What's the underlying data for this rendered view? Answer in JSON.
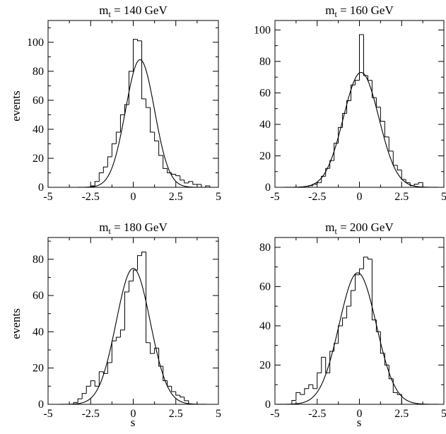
{
  "figure": {
    "ylabel_top": "events",
    "ylabel_bottom": "events",
    "xlabel_left": "s",
    "xlabel_right": "s"
  },
  "chart_data": [
    {
      "type": "histogram",
      "title_main": "m",
      "title_sub": "t",
      "title_rest": " = 140 GeV",
      "xlim": [
        -5,
        5
      ],
      "ylim": [
        0,
        115
      ],
      "xticks": [
        -5,
        -2.5,
        0,
        2.5,
        5
      ],
      "xtick_labels": [
        "-5",
        "-2.5",
        "0",
        "2.5",
        "5"
      ],
      "yticks": [
        0,
        20,
        40,
        60,
        80,
        100
      ],
      "ytick_labels": [
        "0",
        "20",
        "40",
        "60",
        "80",
        "100"
      ],
      "bin_width": 0.25,
      "bins_left": [
        -2.5,
        -2.25,
        -2.0,
        -1.75,
        -1.5,
        -1.25,
        -1.0,
        -0.75,
        -0.5,
        -0.25,
        0.0,
        0.25,
        0.5,
        0.75,
        1.0,
        1.25,
        1.5,
        1.75,
        2.0,
        2.25,
        2.5,
        2.75,
        3.0,
        3.25,
        3.5,
        3.75,
        4.0,
        4.25,
        4.5
      ],
      "counts": [
        1,
        4,
        10,
        14,
        21,
        30,
        38,
        50,
        57,
        80,
        102,
        101,
        61,
        55,
        38,
        32,
        22,
        13,
        10,
        9,
        8,
        5,
        3,
        4,
        2,
        2,
        0,
        1,
        0
      ],
      "fit": {
        "type": "gaussian",
        "amplitude": 88,
        "mean": 0.4,
        "sigma": 0.85
      }
    },
    {
      "type": "histogram",
      "title_main": "m",
      "title_sub": "t",
      "title_rest": " = 160 GeV",
      "xlim": [
        -5,
        5
      ],
      "ylim": [
        0,
        106
      ],
      "xticks": [
        -5,
        -2.5,
        0,
        2.5,
        5
      ],
      "xtick_labels": [
        "-5",
        "-2.5",
        "0",
        "2.5",
        "5"
      ],
      "yticks": [
        0,
        20,
        40,
        60,
        80,
        100
      ],
      "ytick_labels": [
        "0",
        "20",
        "40",
        "60",
        "80",
        "100"
      ],
      "bin_width": 0.25,
      "bins_left": [
        -3.0,
        -2.75,
        -2.5,
        -2.25,
        -2.0,
        -1.75,
        -1.5,
        -1.25,
        -1.0,
        -0.75,
        -0.5,
        -0.25,
        0.0,
        0.25,
        0.5,
        0.75,
        1.0,
        1.25,
        1.5,
        1.75,
        2.0,
        2.25,
        2.5,
        2.75,
        3.0,
        3.25,
        3.5
      ],
      "counts": [
        1,
        2,
        3,
        7,
        12,
        17,
        28,
        38,
        47,
        55,
        65,
        68,
        97,
        71,
        68,
        57,
        51,
        42,
        32,
        23,
        14,
        11,
        5,
        3,
        1,
        2,
        3
      ],
      "fit": {
        "type": "gaussian",
        "amplitude": 73,
        "mean": 0.1,
        "sigma": 1.05
      }
    },
    {
      "type": "histogram",
      "title_main": "m",
      "title_sub": "t",
      "title_rest": " = 180 GeV",
      "xlim": [
        -5,
        5
      ],
      "ylim": [
        0,
        92
      ],
      "xticks": [
        -5,
        -2.5,
        0,
        2.5,
        5
      ],
      "xtick_labels": [
        "-5",
        "-2.5",
        "0",
        "2.5",
        "5"
      ],
      "yticks": [
        0,
        20,
        40,
        60,
        80
      ],
      "ytick_labels": [
        "0",
        "20",
        "40",
        "60",
        "80"
      ],
      "bin_width": 0.25,
      "bins_left": [
        -3.5,
        -3.25,
        -3.0,
        -2.75,
        -2.5,
        -2.25,
        -2.0,
        -1.75,
        -1.5,
        -1.25,
        -1.0,
        -0.75,
        -0.5,
        -0.25,
        0.0,
        0.25,
        0.5,
        0.75,
        1.0,
        1.25,
        1.5,
        1.75,
        2.0,
        2.25,
        2.5,
        2.75,
        3.0
      ],
      "counts": [
        1,
        3,
        6,
        10,
        13,
        10,
        18,
        17,
        23,
        35,
        37,
        41,
        62,
        68,
        74,
        82,
        84,
        34,
        28,
        31,
        21,
        13,
        10,
        7,
        5,
        4,
        2
      ],
      "fit": {
        "type": "gaussian",
        "amplitude": 75,
        "mean": 0.0,
        "sigma": 1.0
      }
    },
    {
      "type": "histogram",
      "title_main": "m",
      "title_sub": "t",
      "title_rest": " = 200 GeV",
      "xlim": [
        -5,
        5
      ],
      "ylim": [
        0,
        85
      ],
      "xticks": [
        -5,
        -2.5,
        0,
        2.5,
        5
      ],
      "xtick_labels": [
        "-5",
        "-2.5",
        "0",
        "2.5",
        "5"
      ],
      "yticks": [
        0,
        20,
        40,
        60,
        80
      ],
      "ytick_labels": [
        "0",
        "20",
        "40",
        "60",
        "80"
      ],
      "bin_width": 0.25,
      "bins_left": [
        -4.0,
        -3.75,
        -3.5,
        -3.25,
        -3.0,
        -2.75,
        -2.5,
        -2.25,
        -2.0,
        -1.75,
        -1.5,
        -1.25,
        -1.0,
        -0.75,
        -0.5,
        -0.25,
        0.0,
        0.25,
        0.5,
        0.75,
        1.0,
        1.25,
        1.5,
        1.75,
        2.0,
        2.25
      ],
      "counts": [
        2,
        6,
        5,
        8,
        10,
        8,
        16,
        24,
        16,
        27,
        31,
        40,
        44,
        50,
        58,
        66,
        69,
        75,
        74,
        43,
        37,
        26,
        20,
        13,
        6,
        5
      ],
      "fit": {
        "type": "gaussian",
        "amplitude": 67,
        "mean": -0.1,
        "sigma": 1.1
      }
    }
  ]
}
